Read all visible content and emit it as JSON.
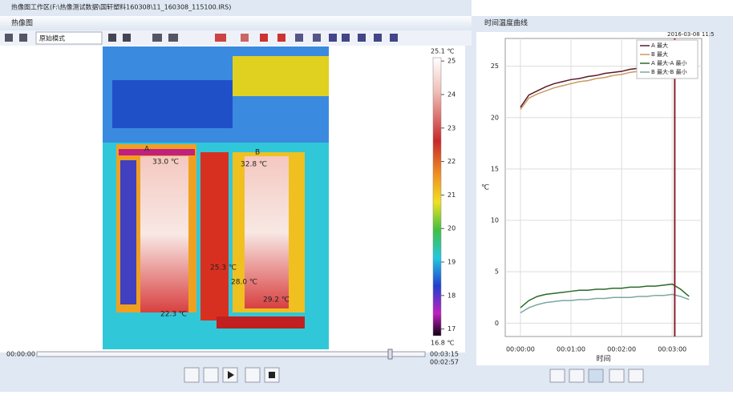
{
  "window": {
    "title": "热像图工作区(F:\\热像测试数据\\国轩塑料160308\\11_160308_115100.IRS)"
  },
  "thermal_panel": {
    "title": "热像图",
    "mode": "原始模式",
    "colorbar": {
      "max_label": "25.1 ℃",
      "min_label": "16.8 ℃",
      "range": [
        16.8,
        25.1
      ],
      "ticks": [
        17,
        18,
        19,
        20,
        21,
        22,
        23,
        24,
        25
      ]
    },
    "markers": [
      {
        "label": "A"
      },
      {
        "label": "B"
      }
    ],
    "temperatures": [
      "33.0 ℃",
      "32.8 ℃",
      "25.3 ℃",
      "28.0 ℃",
      "22.3 ℃",
      "29.2 ℃"
    ],
    "time_start": "00:00:00",
    "time_total": "00:03:15",
    "time_current": "00:02:57"
  },
  "chart_data": {
    "type": "line",
    "panel_title": "时间温度曲线",
    "xlabel": "时间",
    "ylabel": "℃",
    "annotation": "2016-03-08 11:5",
    "x": [
      0,
      10,
      20,
      30,
      40,
      50,
      60,
      70,
      80,
      90,
      100,
      110,
      120,
      130,
      140,
      150,
      160,
      170,
      180,
      190,
      200
    ],
    "xlim": [
      -18,
      215
    ],
    "xticks": [
      {
        "value": 0,
        "label": "00:00:00"
      },
      {
        "value": 60,
        "label": "00:01:00"
      },
      {
        "value": 120,
        "label": "00:02:00"
      },
      {
        "value": 180,
        "label": "00:03:00"
      }
    ],
    "ylim": [
      -1.3,
      27.7
    ],
    "yticks": [
      0,
      5,
      10,
      15,
      20,
      25
    ],
    "grid": true,
    "cursor": 183,
    "series": [
      {
        "name": "A 最大",
        "color": "#5a1a2a",
        "values": [
          21.0,
          22.2,
          22.6,
          23.0,
          23.3,
          23.5,
          23.7,
          23.8,
          24.0,
          24.1,
          24.3,
          24.4,
          24.5,
          24.7,
          24.8,
          25.0,
          25.1,
          25.3,
          25.4,
          25.4,
          25.2
        ]
      },
      {
        "name": "B 最大",
        "color": "#c89a60",
        "values": [
          20.8,
          21.9,
          22.3,
          22.6,
          22.9,
          23.1,
          23.3,
          23.5,
          23.6,
          23.8,
          23.9,
          24.1,
          24.2,
          24.4,
          24.5,
          24.7,
          24.8,
          25.0,
          25.1,
          25.2,
          25.0
        ]
      },
      {
        "name": "A 最大-A 最小",
        "color": "#2a6a2a",
        "values": [
          1.5,
          2.2,
          2.6,
          2.8,
          2.9,
          3.0,
          3.1,
          3.2,
          3.2,
          3.3,
          3.3,
          3.4,
          3.4,
          3.5,
          3.5,
          3.6,
          3.6,
          3.7,
          3.8,
          3.3,
          2.6
        ]
      },
      {
        "name": "B 最大-B 最小",
        "color": "#7aa8a0",
        "values": [
          1.0,
          1.5,
          1.8,
          2.0,
          2.1,
          2.2,
          2.2,
          2.3,
          2.3,
          2.4,
          2.4,
          2.5,
          2.5,
          2.5,
          2.6,
          2.6,
          2.7,
          2.7,
          2.8,
          2.6,
          2.3
        ]
      }
    ]
  }
}
